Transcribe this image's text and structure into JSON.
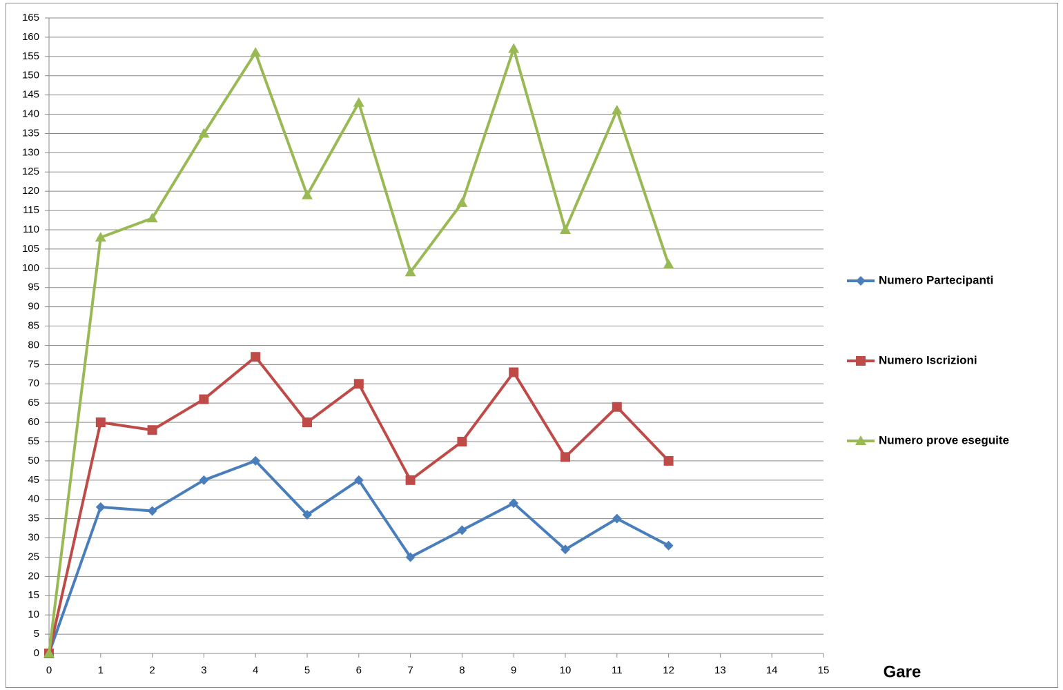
{
  "chart_data": {
    "type": "line",
    "x_label": "Gare",
    "x": [
      0,
      1,
      2,
      3,
      4,
      5,
      6,
      7,
      8,
      9,
      10,
      11,
      12
    ],
    "series": [
      {
        "name": "Numero Partecipanti",
        "color": "#4a7ebb",
        "marker": "diamond",
        "values": [
          0,
          38,
          37,
          45,
          50,
          36,
          45,
          25,
          32,
          39,
          27,
          35,
          28
        ]
      },
      {
        "name": "Numero Iscrizioni",
        "color": "#be4b48",
        "marker": "square",
        "values": [
          0,
          60,
          58,
          66,
          77,
          60,
          70,
          45,
          55,
          73,
          51,
          64,
          50
        ]
      },
      {
        "name": "Numero prove eseguite",
        "color": "#98b954",
        "marker": "triangle",
        "values": [
          0,
          108,
          113,
          135,
          156,
          119,
          143,
          99,
          117,
          157,
          110,
          141,
          101
        ]
      }
    ],
    "xlim": [
      0,
      15
    ],
    "xticks": [
      0,
      1,
      2,
      3,
      4,
      5,
      6,
      7,
      8,
      9,
      10,
      11,
      12,
      13,
      14,
      15
    ],
    "ylim": [
      0,
      165
    ],
    "yticks": [
      0,
      5,
      10,
      15,
      20,
      25,
      30,
      35,
      40,
      45,
      50,
      55,
      60,
      65,
      70,
      75,
      80,
      85,
      90,
      95,
      100,
      105,
      110,
      115,
      120,
      125,
      130,
      135,
      140,
      145,
      150,
      155,
      160,
      165
    ],
    "grid": true,
    "legend": "right"
  }
}
